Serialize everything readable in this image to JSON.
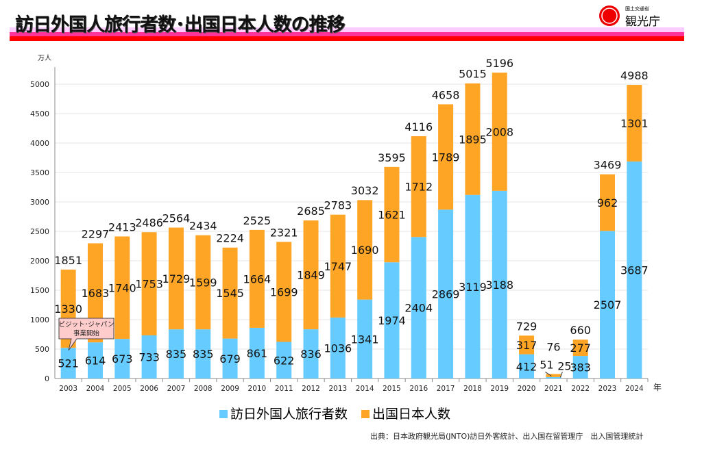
{
  "header": {
    "title": "訪日外国人旅行者数･出国日本人数の推移",
    "logo_small": "国土交通省",
    "logo_main": "観光庁"
  },
  "colors": {
    "inbound": "#66ccff",
    "outbound": "#ffa526",
    "band_light": "#ffccff",
    "band_mid": "#ff3399",
    "band_red": "#ff0000"
  },
  "chart_data": {
    "type": "bar",
    "stacked": true,
    "ylabel": "万人",
    "xlabel": "年",
    "ylim": [
      0,
      5000
    ],
    "yticks": [
      0,
      500,
      1000,
      1500,
      2000,
      2500,
      3000,
      3500,
      4000,
      4500,
      5000
    ],
    "grid": true,
    "categories": [
      "2003",
      "2004",
      "2005",
      "2006",
      "2007",
      "2008",
      "2009",
      "2010",
      "2011",
      "2012",
      "2013",
      "2014",
      "2015",
      "2016",
      "2017",
      "2018",
      "2019",
      "2020",
      "2021",
      "2022",
      "2023",
      "2024"
    ],
    "series": [
      {
        "name": "訪日外国人旅行者数",
        "values": [
          521,
          614,
          673,
          733,
          835,
          835,
          679,
          861,
          622,
          836,
          1036,
          1341,
          1974,
          2404,
          2869,
          3119,
          3188,
          412,
          25,
          383,
          2507,
          3687
        ]
      },
      {
        "name": "出国日本人数",
        "values": [
          1330,
          1683,
          1740,
          1753,
          1729,
          1599,
          1545,
          1664,
          1699,
          1849,
          1747,
          1690,
          1621,
          1712,
          1789,
          1895,
          2008,
          317,
          51,
          277,
          962,
          1301
        ]
      }
    ],
    "totals": [
      1851,
      2297,
      2413,
      2486,
      2564,
      2434,
      2224,
      2525,
      2321,
      2685,
      2783,
      3032,
      3595,
      4116,
      4658,
      5015,
      5196,
      729,
      76,
      660,
      3469,
      4988
    ],
    "annotation": "ビジット･ジャパン\n事業開始",
    "legend": "bottom"
  },
  "source": "出典：日本政府観光局(JNTO)訪日外客統計、出入国在留管理庁　出入国管理統計"
}
